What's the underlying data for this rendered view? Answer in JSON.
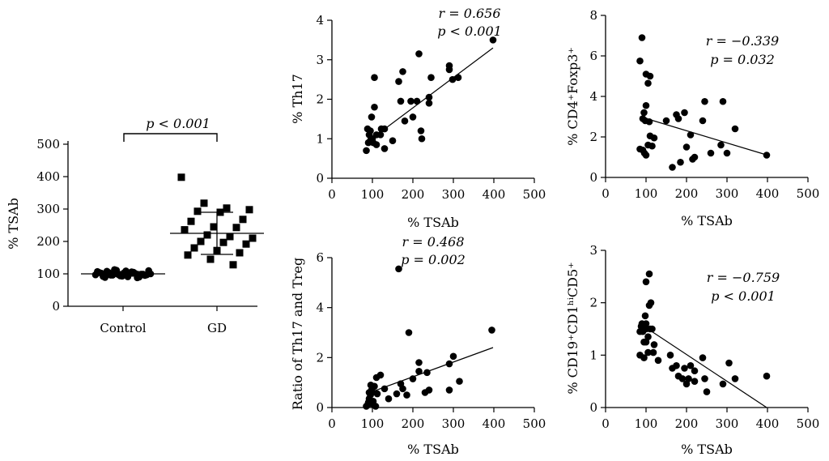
{
  "chart_data": [
    {
      "id": "tsab",
      "type": "scatter",
      "categories": [
        "Control",
        "GD"
      ],
      "ylabel": "% TSAb",
      "ylim": [
        0,
        500
      ],
      "yticks": [
        "0",
        "100",
        "200",
        "300",
        "400",
        "500"
      ],
      "annotation": "p < 0.001",
      "series": [
        {
          "name": "Control",
          "marker": "circle",
          "mean": 100,
          "sd": 7,
          "values": [
            97,
            104,
            93,
            101,
            110,
            89,
            98,
            106,
            95,
            102,
            113,
            91,
            99,
            107,
            96,
            103,
            88,
            100,
            108,
            94,
            105,
            97,
            92,
            111,
            101,
            99,
            104,
            96,
            109,
            90
          ]
        },
        {
          "name": "GD",
          "marker": "square",
          "mean": 225,
          "sd": 65,
          "values": [
            398,
            318,
            303,
            298,
            293,
            290,
            268,
            262,
            245,
            243,
            236,
            220,
            215,
            210,
            200,
            197,
            192,
            180,
            172,
            165,
            158,
            145,
            128
          ]
        }
      ]
    },
    {
      "id": "th17",
      "type": "scatter",
      "xlabel": "% TSAb",
      "ylabel": "% Th17",
      "xlim": [
        0,
        500
      ],
      "ylim": [
        0,
        4
      ],
      "xticks": [
        "0",
        "100",
        "200",
        "300",
        "400",
        "500"
      ],
      "yticks": [
        "0",
        "1",
        "2",
        "3",
        "4"
      ],
      "stat_r": "r = 0.656",
      "stat_p": "p < 0.001",
      "trend": {
        "x1": 85,
        "y1": 0.9,
        "x2": 398,
        "y2": 3.3
      },
      "points": [
        [
          398,
          3.5
        ],
        [
          312,
          2.55
        ],
        [
          298,
          2.5
        ],
        [
          290,
          2.85
        ],
        [
          290,
          2.75
        ],
        [
          215,
          3.15
        ],
        [
          245,
          2.55
        ],
        [
          240,
          2.05
        ],
        [
          240,
          1.9
        ],
        [
          210,
          1.95
        ],
        [
          220,
          1.2
        ],
        [
          222,
          1.0
        ],
        [
          175,
          2.7
        ],
        [
          165,
          2.45
        ],
        [
          170,
          1.95
        ],
        [
          180,
          1.45
        ],
        [
          195,
          1.95
        ],
        [
          200,
          1.55
        ],
        [
          150,
          0.95
        ],
        [
          130,
          1.25
        ],
        [
          130,
          0.75
        ],
        [
          122,
          1.25
        ],
        [
          120,
          1.1
        ],
        [
          110,
          1.1
        ],
        [
          105,
          2.55
        ],
        [
          105,
          1.8
        ],
        [
          98,
          1.55
        ],
        [
          95,
          1.2
        ],
        [
          92,
          1.1
        ],
        [
          90,
          0.9
        ],
        [
          85,
          0.7
        ],
        [
          88,
          1.25
        ],
        [
          100,
          1.0
        ],
        [
          102,
          0.9
        ],
        [
          110,
          0.85
        ],
        [
          95,
          0.95
        ]
      ]
    },
    {
      "id": "foxp3",
      "type": "scatter",
      "xlabel": "% TSAb",
      "ylabel": "% CD4⁺Foxp3⁺",
      "xlim": [
        0,
        500
      ],
      "ylim": [
        0,
        8
      ],
      "xticks": [
        "0",
        "100",
        "200",
        "300",
        "400",
        "500"
      ],
      "yticks": [
        "0",
        "2",
        "4",
        "6",
        "8"
      ],
      "stat_r": "r = −0.339",
      "stat_p": "p = 0.032",
      "trend": {
        "x1": 85,
        "y1": 3.0,
        "x2": 400,
        "y2": 1.1
      },
      "points": [
        [
          90,
          6.9
        ],
        [
          85,
          5.75
        ],
        [
          100,
          5.1
        ],
        [
          110,
          5.0
        ],
        [
          105,
          4.65
        ],
        [
          100,
          3.55
        ],
        [
          95,
          3.2
        ],
        [
          92,
          2.9
        ],
        [
          98,
          2.8
        ],
        [
          108,
          2.75
        ],
        [
          110,
          2.05
        ],
        [
          105,
          1.6
        ],
        [
          92,
          1.35
        ],
        [
          96,
          1.2
        ],
        [
          100,
          1.1
        ],
        [
          120,
          1.95
        ],
        [
          115,
          1.55
        ],
        [
          150,
          2.8
        ],
        [
          175,
          3.1
        ],
        [
          180,
          2.9
        ],
        [
          195,
          3.2
        ],
        [
          200,
          1.5
        ],
        [
          210,
          2.1
        ],
        [
          220,
          1.0
        ],
        [
          215,
          0.9
        ],
        [
          165,
          0.5
        ],
        [
          185,
          0.75
        ],
        [
          245,
          3.75
        ],
        [
          240,
          2.8
        ],
        [
          260,
          1.2
        ],
        [
          290,
          3.75
        ],
        [
          285,
          1.6
        ],
        [
          300,
          1.2
        ],
        [
          320,
          2.4
        ],
        [
          398,
          1.1
        ],
        [
          85,
          1.4
        ]
      ]
    },
    {
      "id": "ratio",
      "type": "scatter",
      "xlabel": "% TSAb",
      "ylabel": "Ratio of Th17 and Treg",
      "xlim": [
        0,
        500
      ],
      "ylim": [
        0,
        6
      ],
      "xticks": [
        "0",
        "100",
        "200",
        "300",
        "400",
        "500"
      ],
      "yticks": [
        "0",
        "2",
        "4",
        "6"
      ],
      "stat_r": "r = 0.468",
      "stat_p": "p = 0.002",
      "trend": {
        "x1": 85,
        "y1": 0.55,
        "x2": 398,
        "y2": 2.4
      },
      "points": [
        [
          165,
          5.55
        ],
        [
          190,
          3.0
        ],
        [
          395,
          3.1
        ],
        [
          300,
          2.05
        ],
        [
          315,
          1.05
        ],
        [
          290,
          1.75
        ],
        [
          235,
          1.4
        ],
        [
          215,
          1.8
        ],
        [
          215,
          1.45
        ],
        [
          200,
          1.15
        ],
        [
          240,
          0.7
        ],
        [
          230,
          0.6
        ],
        [
          170,
          0.95
        ],
        [
          175,
          0.75
        ],
        [
          160,
          0.55
        ],
        [
          185,
          0.5
        ],
        [
          140,
          0.35
        ],
        [
          130,
          0.75
        ],
        [
          120,
          1.3
        ],
        [
          110,
          1.2
        ],
        [
          105,
          0.85
        ],
        [
          100,
          0.6
        ],
        [
          98,
          0.7
        ],
        [
          95,
          0.5
        ],
        [
          92,
          0.35
        ],
        [
          90,
          0.2
        ],
        [
          88,
          0.1
        ],
        [
          85,
          0.05
        ],
        [
          100,
          0.15
        ],
        [
          108,
          0.05
        ],
        [
          112,
          0.55
        ],
        [
          96,
          0.9
        ],
        [
          102,
          0.25
        ],
        [
          92,
          0.6
        ],
        [
          290,
          0.7
        ]
      ]
    },
    {
      "id": "cd19",
      "type": "scatter",
      "xlabel": "% TSAb",
      "ylabel": "% CD19⁺CD1ʰⁱCD5⁺",
      "xlim": [
        0,
        500
      ],
      "ylim": [
        0,
        3
      ],
      "xticks": [
        "0",
        "100",
        "200",
        "300",
        "400",
        "500"
      ],
      "yticks": [
        "0",
        "1",
        "2",
        "3"
      ],
      "stat_r": "r = −0.759",
      "stat_p": "p < 0.001",
      "trend": {
        "x1": 85,
        "y1": 1.6,
        "x2": 398,
        "y2": 0.0
      },
      "points": [
        [
          108,
          2.55
        ],
        [
          100,
          2.4
        ],
        [
          112,
          2.0
        ],
        [
          108,
          1.95
        ],
        [
          98,
          1.75
        ],
        [
          100,
          1.6
        ],
        [
          90,
          1.6
        ],
        [
          88,
          1.55
        ],
        [
          95,
          1.5
        ],
        [
          92,
          1.45
        ],
        [
          85,
          1.45
        ],
        [
          100,
          1.5
        ],
        [
          110,
          1.5
        ],
        [
          105,
          1.35
        ],
        [
          115,
          1.5
        ],
        [
          95,
          1.25
        ],
        [
          100,
          1.25
        ],
        [
          105,
          1.05
        ],
        [
          120,
          1.2
        ],
        [
          118,
          1.05
        ],
        [
          85,
          1.0
        ],
        [
          95,
          0.95
        ],
        [
          130,
          0.9
        ],
        [
          160,
          1.0
        ],
        [
          165,
          0.75
        ],
        [
          175,
          0.8
        ],
        [
          180,
          0.6
        ],
        [
          190,
          0.55
        ],
        [
          195,
          0.75
        ],
        [
          210,
          0.8
        ],
        [
          205,
          0.55
        ],
        [
          220,
          0.5
        ],
        [
          240,
          0.95
        ],
        [
          245,
          0.55
        ],
        [
          250,
          0.3
        ],
        [
          290,
          0.45
        ],
        [
          305,
          0.85
        ],
        [
          320,
          0.55
        ],
        [
          398,
          0.6
        ],
        [
          200,
          0.45
        ],
        [
          220,
          0.7
        ]
      ]
    }
  ]
}
